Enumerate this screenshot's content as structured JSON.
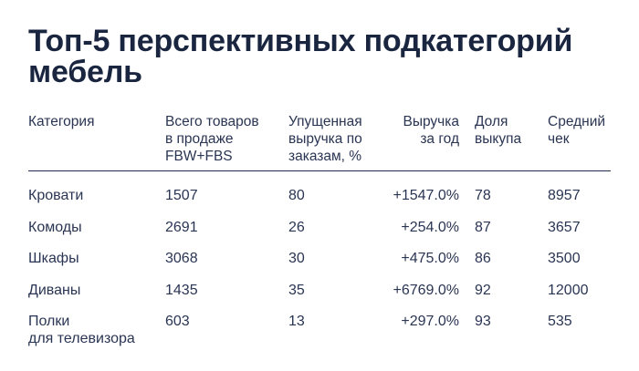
{
  "title": {
    "line1": "Топ-5 перспективных подкатегорий",
    "line2": "мебель"
  },
  "table": {
    "headers": [
      "Категория",
      "Всего товаров\nв продаже\nFBW+FBS",
      "Упущенная\nвыручка по\nзаказам, %",
      "Выручка\nза год",
      "Доля\nвыкупа",
      "Средний\nчек"
    ],
    "rows": [
      [
        "Кровати",
        "1507",
        "80",
        "+1547.0%",
        "78",
        "8957"
      ],
      [
        "Комоды",
        "2691",
        "26",
        "+254.0%",
        "87",
        "3657"
      ],
      [
        "Шкафы",
        "3068",
        "30",
        "+475.0%",
        "86",
        "3500"
      ],
      [
        "Диваны",
        "1435",
        "35",
        "+6769.0%",
        "92",
        "12000"
      ],
      [
        "Полки\nдля телевизора",
        "603",
        "13",
        "+297.0%",
        "93",
        "535"
      ]
    ]
  }
}
